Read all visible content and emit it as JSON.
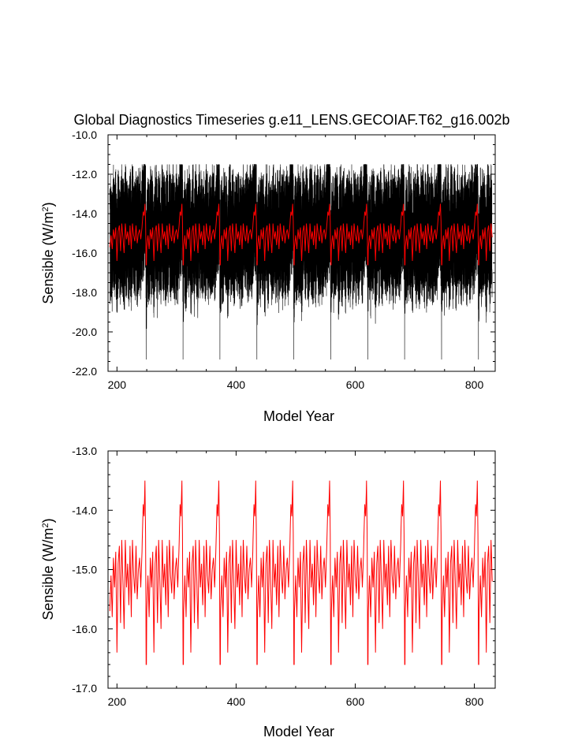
{
  "title": "Global Diagnostics Timeseries g.e11_LENS.GECOIAF.T62_g16.002b",
  "colors": {
    "black_series": "#000000",
    "red_series": "#ff0000"
  },
  "chart_data": [
    {
      "type": "line",
      "xlabel": "Model Year",
      "ylabel": "Sensible (W/m",
      "ylabel_sup": "2",
      "ylabel_suffix": ")",
      "xlim": [
        185,
        835
      ],
      "ylim": [
        -22.0,
        -10.0
      ],
      "x_ticks": [
        200,
        400,
        600,
        800
      ],
      "x_tick_labels": [
        "200",
        "400",
        "600",
        "800"
      ],
      "y_ticks": [
        -22.0,
        -20.0,
        -18.0,
        -16.0,
        -14.0,
        -12.0,
        -10.0
      ],
      "y_tick_labels": [
        "-22.0",
        "-20.0",
        "-18.0",
        "-16.0",
        "-14.0",
        "-12.0",
        "-10.0"
      ],
      "grid": false,
      "series": [
        {
          "color": "#000000",
          "x_start": 188,
          "x_end": 830,
          "repeat_period_years": 62,
          "envelope_min": -19.4,
          "envelope_max": -11.5,
          "spike_min": -21.4
        },
        {
          "color": "#ff0000",
          "x_start": 188,
          "x_end": 830,
          "repeat_period_years": 62,
          "min": -16.6,
          "max": -13.5
        }
      ]
    },
    {
      "type": "line",
      "xlabel": "Model Year",
      "ylabel": "Sensible (W/m",
      "ylabel_sup": "2",
      "ylabel_suffix": ")",
      "xlim": [
        185,
        835
      ],
      "ylim": [
        -17.0,
        -13.0
      ],
      "x_ticks": [
        200,
        400,
        600,
        800
      ],
      "x_tick_labels": [
        "200",
        "400",
        "600",
        "800"
      ],
      "y_ticks": [
        -17.0,
        -16.0,
        -15.0,
        -14.0,
        -13.0
      ],
      "y_tick_labels": [
        "-17.0",
        "-16.0",
        "-15.0",
        "-14.0",
        "-13.0"
      ],
      "grid": false,
      "series": [
        {
          "color": "#ff0000",
          "x_start": 188,
          "x_end": 830,
          "repeat_period_years": 62,
          "min": -16.6,
          "max": -13.5,
          "cycle_shape": [
            [
              0.0,
              -15.7
            ],
            [
              2.0,
              -15.1
            ],
            [
              4.0,
              -15.8
            ],
            [
              6.0,
              -14.8
            ],
            [
              8.0,
              -15.3
            ],
            [
              10.0,
              -14.7
            ],
            [
              12.0,
              -16.4
            ],
            [
              14.0,
              -14.9
            ],
            [
              16.0,
              -14.6
            ],
            [
              18.0,
              -15.9
            ],
            [
              20.0,
              -14.5
            ],
            [
              22.0,
              -15.2
            ],
            [
              24.0,
              -16.0
            ],
            [
              26.0,
              -14.5
            ],
            [
              28.0,
              -15.3
            ],
            [
              30.0,
              -14.9
            ],
            [
              32.0,
              -15.6
            ],
            [
              34.0,
              -14.6
            ],
            [
              36.0,
              -15.8
            ],
            [
              38.0,
              -14.5
            ],
            [
              40.0,
              -15.1
            ],
            [
              42.0,
              -15.4
            ],
            [
              44.0,
              -14.6
            ],
            [
              46.0,
              -15.5
            ],
            [
              48.0,
              -15.0
            ],
            [
              50.0,
              -14.8
            ],
            [
              52.0,
              -15.3
            ],
            [
              54.0,
              -14.7
            ],
            [
              56.0,
              -13.9
            ],
            [
              57.5,
              -14.1
            ],
            [
              59.0,
              -13.5
            ],
            [
              60.0,
              -14.4
            ],
            [
              61.0,
              -16.6
            ]
          ]
        }
      ]
    }
  ]
}
